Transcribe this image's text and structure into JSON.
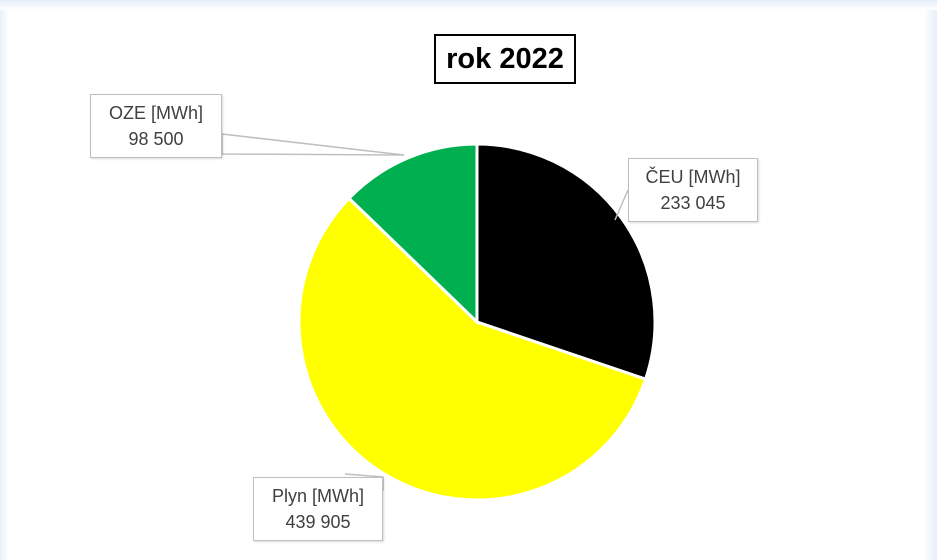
{
  "chart_data": {
    "type": "pie",
    "title": "rok 2022",
    "slices": [
      {
        "label": "ČEU [MWh]",
        "value": 233045,
        "value_text": "233 045",
        "color": "#000000"
      },
      {
        "label": "Plyn [MWh]",
        "value": 439905,
        "value_text": "439 905",
        "color": "#ffff00"
      },
      {
        "label": "OZE [MWh]",
        "value": 98500,
        "value_text": "98 500",
        "color": "#00b050"
      }
    ],
    "start_angle_deg": 0,
    "direction": "clockwise",
    "legend": "none",
    "data_labels": "outside-with-leader-lines"
  }
}
